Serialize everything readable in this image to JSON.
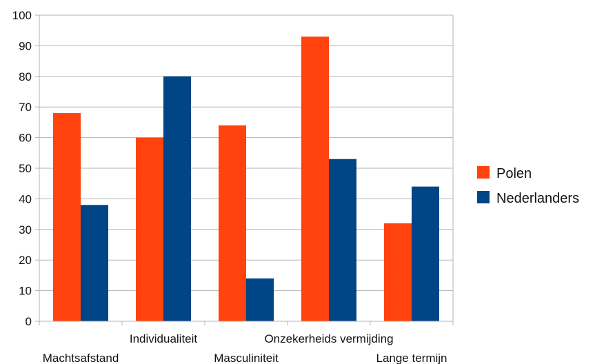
{
  "chart_data": {
    "type": "bar",
    "categories": [
      "Machtsafstand",
      "Individualiteit",
      "Masculiniteit",
      "Onzekerheids vermijding",
      "Lange termijn"
    ],
    "series": [
      {
        "name": "Polen",
        "values": [
          68,
          60,
          64,
          93,
          32
        ]
      },
      {
        "name": "Nederlanders",
        "values": [
          38,
          80,
          14,
          53,
          44
        ]
      }
    ],
    "title": "",
    "xlabel": "",
    "ylabel": "",
    "ylim": [
      0,
      100
    ],
    "yticks": [
      0,
      10,
      20,
      30,
      40,
      50,
      60,
      70,
      80,
      90,
      100
    ],
    "grid": true,
    "legend_position": "right"
  },
  "colors": {
    "Polen": "#ff420e",
    "Nederlanders": "#004586",
    "grid": "#b3b3b3",
    "axis": "#b3b3b3"
  }
}
